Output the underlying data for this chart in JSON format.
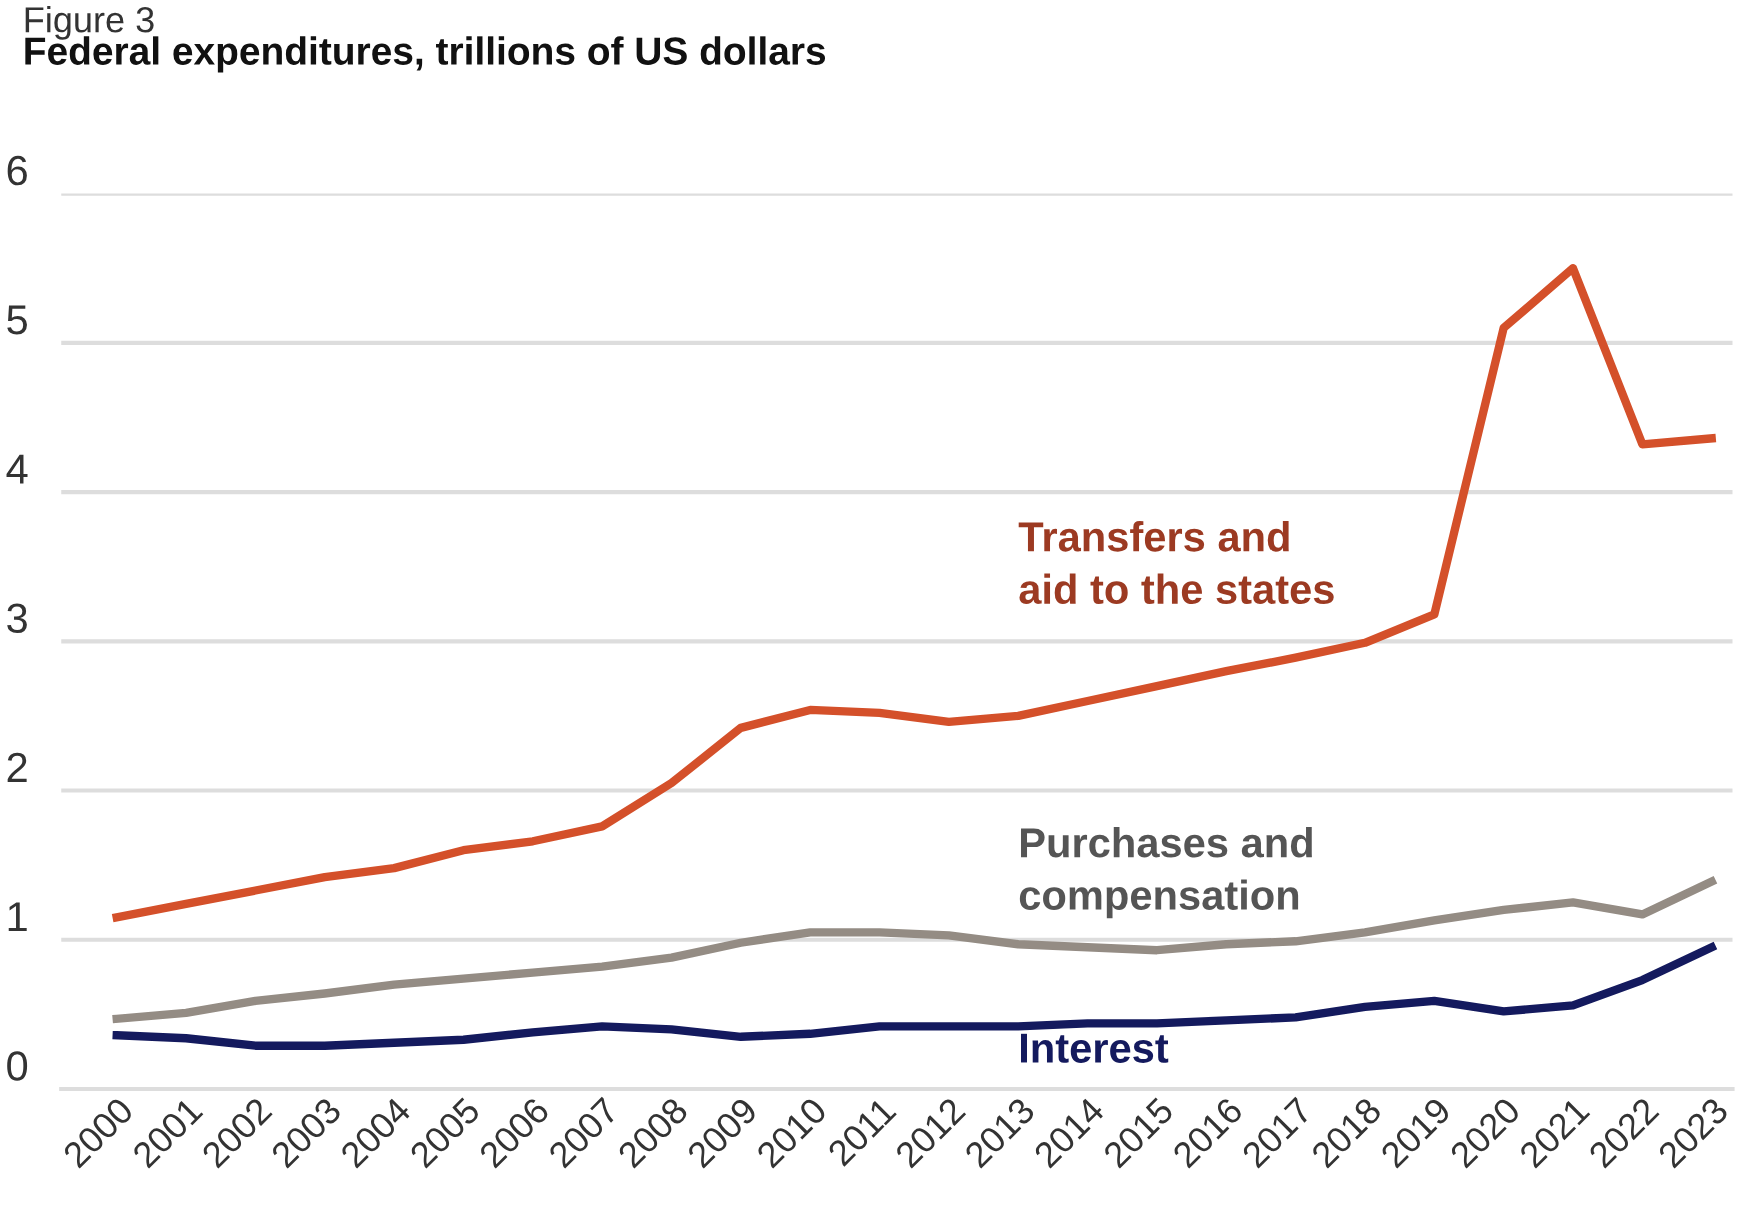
{
  "chart_data": {
    "type": "line",
    "title": "Federal expenditures, trillions of US dollars",
    "annotations": [
      "Figure 3"
    ],
    "categories": [
      "2000",
      "2001",
      "2002",
      "2003",
      "2004",
      "2005",
      "2006",
      "2007",
      "2008",
      "2009",
      "2010",
      "2011",
      "2012",
      "2013",
      "2014",
      "2015",
      "2016",
      "2017",
      "2018",
      "2019",
      "2020",
      "2021",
      "2022",
      "2023"
    ],
    "series": [
      {
        "name": "Transfers and\naid to the states",
        "color": "#d4502a",
        "values": [
          1.15,
          1.24,
          1.33,
          1.42,
          1.48,
          1.6,
          1.66,
          1.76,
          2.05,
          2.42,
          2.54,
          2.52,
          2.46,
          2.5,
          2.6,
          2.7,
          2.8,
          2.89,
          2.99,
          3.18,
          5.1,
          5.5,
          4.32,
          4.36
        ]
      },
      {
        "name": "Purchases and\ncompensation",
        "color": "#948c84",
        "values": [
          0.47,
          0.51,
          0.59,
          0.64,
          0.7,
          0.74,
          0.78,
          0.82,
          0.88,
          0.98,
          1.05,
          1.05,
          1.03,
          0.97,
          0.95,
          0.93,
          0.97,
          0.99,
          1.05,
          1.13,
          1.2,
          1.25,
          1.17,
          1.39
        ]
      },
      {
        "name": "Interest",
        "color": "#141a5e",
        "values": [
          0.36,
          0.34,
          0.29,
          0.29,
          0.31,
          0.33,
          0.38,
          0.42,
          0.4,
          0.35,
          0.37,
          0.42,
          0.42,
          0.42,
          0.44,
          0.44,
          0.46,
          0.48,
          0.55,
          0.59,
          0.52,
          0.56,
          0.73,
          0.95
        ]
      }
    ],
    "ylim": [
      0,
      6
    ],
    "yticks": [
      0,
      1,
      2,
      3,
      4,
      5,
      6
    ],
    "grid": "y",
    "legend": false,
    "line_style": "solid"
  }
}
